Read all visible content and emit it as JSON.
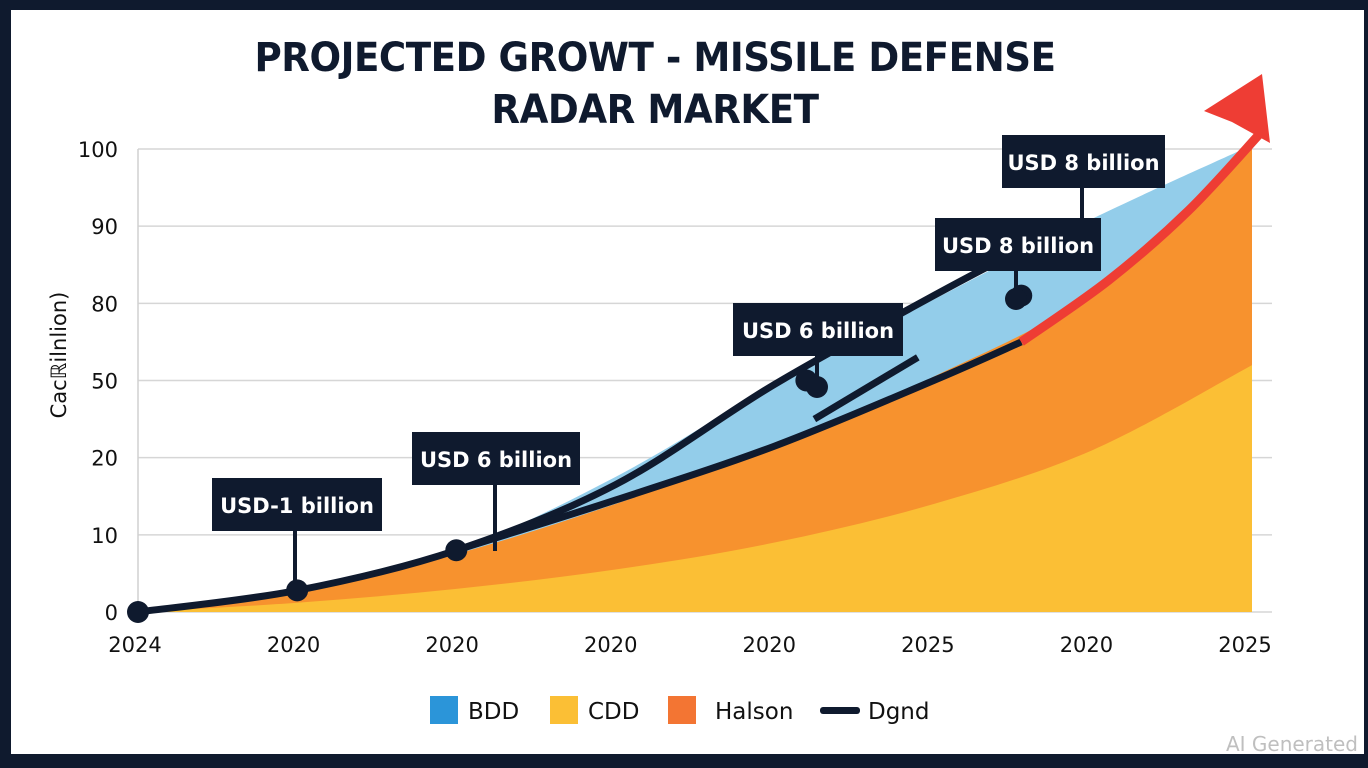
{
  "chart_data": {
    "type": "area",
    "title_lines": [
      "PROJECTED GROWT - MISSILE DEFENSE",
      "RADAR MARKET"
    ],
    "ylabel": "Cacℝilnlion)",
    "xlabel": "",
    "y_ticks": [
      "100",
      "90",
      "80",
      "50",
      "20",
      "10",
      "0"
    ],
    "x_ticks": [
      "2024",
      "2020",
      "2020",
      "2020",
      "2020",
      "2025",
      "2020",
      "2025"
    ],
    "grid": true,
    "legend_position": "bottom",
    "x_index_range": [
      0,
      7
    ],
    "y_index_range": [
      0,
      6
    ],
    "series": [
      {
        "name": "CDD",
        "kind": "area",
        "color": "#fbbf35",
        "points": [
          [
            0,
            0
          ],
          [
            1,
            0.12
          ],
          [
            2,
            0.3
          ],
          [
            3,
            0.55
          ],
          [
            4,
            0.9
          ],
          [
            5,
            1.4
          ],
          [
            6,
            2.1
          ],
          [
            7,
            3.2
          ]
        ]
      },
      {
        "name": "Halson",
        "kind": "area",
        "color": "#f7922e",
        "points": [
          [
            0,
            0
          ],
          [
            1,
            0.25
          ],
          [
            2,
            0.75
          ],
          [
            3,
            1.4
          ],
          [
            4,
            2.15
          ],
          [
            5,
            3.05
          ],
          [
            6,
            4.15
          ],
          [
            7,
            6.05
          ]
        ]
      },
      {
        "name": "BDD",
        "kind": "area",
        "color": "#93cdea",
        "points": [
          [
            0,
            0
          ],
          [
            1,
            0.3
          ],
          [
            2,
            0.8
          ],
          [
            3,
            1.75
          ],
          [
            4,
            2.95
          ],
          [
            5,
            4.05
          ],
          [
            6,
            5.1
          ],
          [
            7,
            6.05
          ]
        ]
      },
      {
        "name": "Dgnd",
        "kind": "line",
        "color": "#0f1a2e",
        "points": [
          [
            0,
            0
          ],
          [
            1,
            0.28
          ],
          [
            2,
            0.8
          ],
          [
            3,
            1.65
          ],
          [
            4,
            2.95
          ],
          [
            5,
            4.1
          ],
          [
            5.55,
            4.7
          ]
        ]
      },
      {
        "name": "Trend (lower)",
        "kind": "line",
        "color": "#0f1a2e",
        "points": [
          [
            2,
            0.8
          ],
          [
            3,
            1.45
          ],
          [
            4,
            2.15
          ],
          [
            5,
            3.0
          ],
          [
            5.55,
            3.5
          ]
        ]
      },
      {
        "name": "Trend arrow",
        "kind": "arrow",
        "color": "#ee3d34",
        "points": [
          [
            5.55,
            3.5
          ],
          [
            6.1,
            4.3
          ],
          [
            6.6,
            5.2
          ],
          [
            7.05,
            6.2
          ],
          [
            7.1,
            6.9
          ]
        ]
      }
    ],
    "markers": [
      [
        0,
        0
      ],
      [
        1,
        0.28
      ],
      [
        2,
        0.8
      ],
      [
        4.2,
        3.0
      ],
      [
        5.55,
        4.1
      ]
    ],
    "annotations": [
      {
        "label": "USD-1 billion",
        "x": 1,
        "y": 0.28
      },
      {
        "label": "USD 6 billion",
        "x": 2,
        "y": 0.8
      },
      {
        "label": "USD 6 billion",
        "x": 4.2,
        "y": 3.0
      },
      {
        "label": "USD 8 billion",
        "x": 5.55,
        "y": 4.1
      },
      {
        "label": "USD 8 billion",
        "x": 5.55,
        "y": 4.1
      }
    ],
    "legend": [
      {
        "label": "BDD",
        "color": "#2b95d9",
        "kind": "swatch"
      },
      {
        "label": "CDD",
        "color": "#fbbf35",
        "kind": "swatch"
      },
      {
        "label": "Halson",
        "color": "#f37533",
        "kind": "swatch"
      },
      {
        "label": "Dgnd",
        "color": "#0f1a2e",
        "kind": "line"
      }
    ]
  },
  "watermark": "AI Generated"
}
